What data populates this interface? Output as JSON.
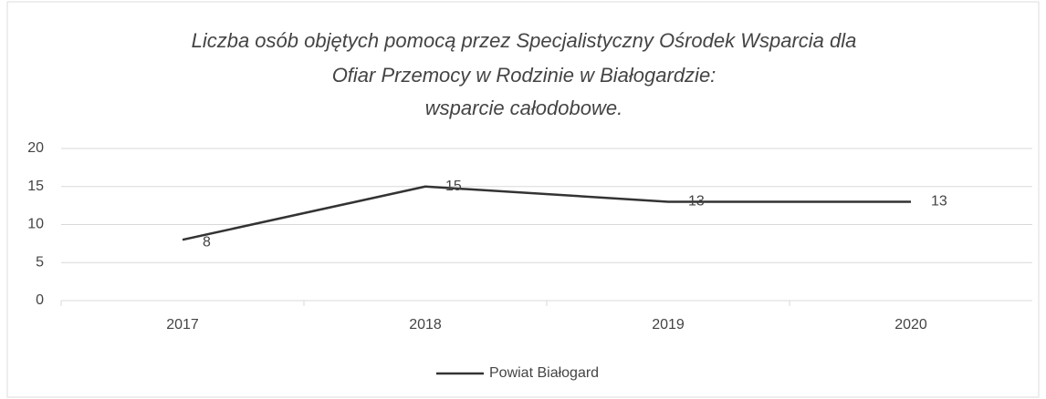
{
  "chart_data": {
    "type": "line",
    "title": [
      "Liczba osób objętych pomocą przez Specjalistyczny Ośrodek Wsparcia dla",
      "Ofiar Przemocy w Rodzinie w Białogardzie:",
      "wsparcie całodobowe."
    ],
    "categories": [
      "2017",
      "2018",
      "2019",
      "2020"
    ],
    "series": [
      {
        "name": "Powiat Białogard",
        "color": "#333333",
        "values": [
          8,
          15,
          13,
          13
        ]
      }
    ],
    "ylim": [
      0,
      20
    ],
    "yticks": [
      0,
      5,
      10,
      15,
      20
    ],
    "grid": true,
    "legend": "bottom"
  }
}
